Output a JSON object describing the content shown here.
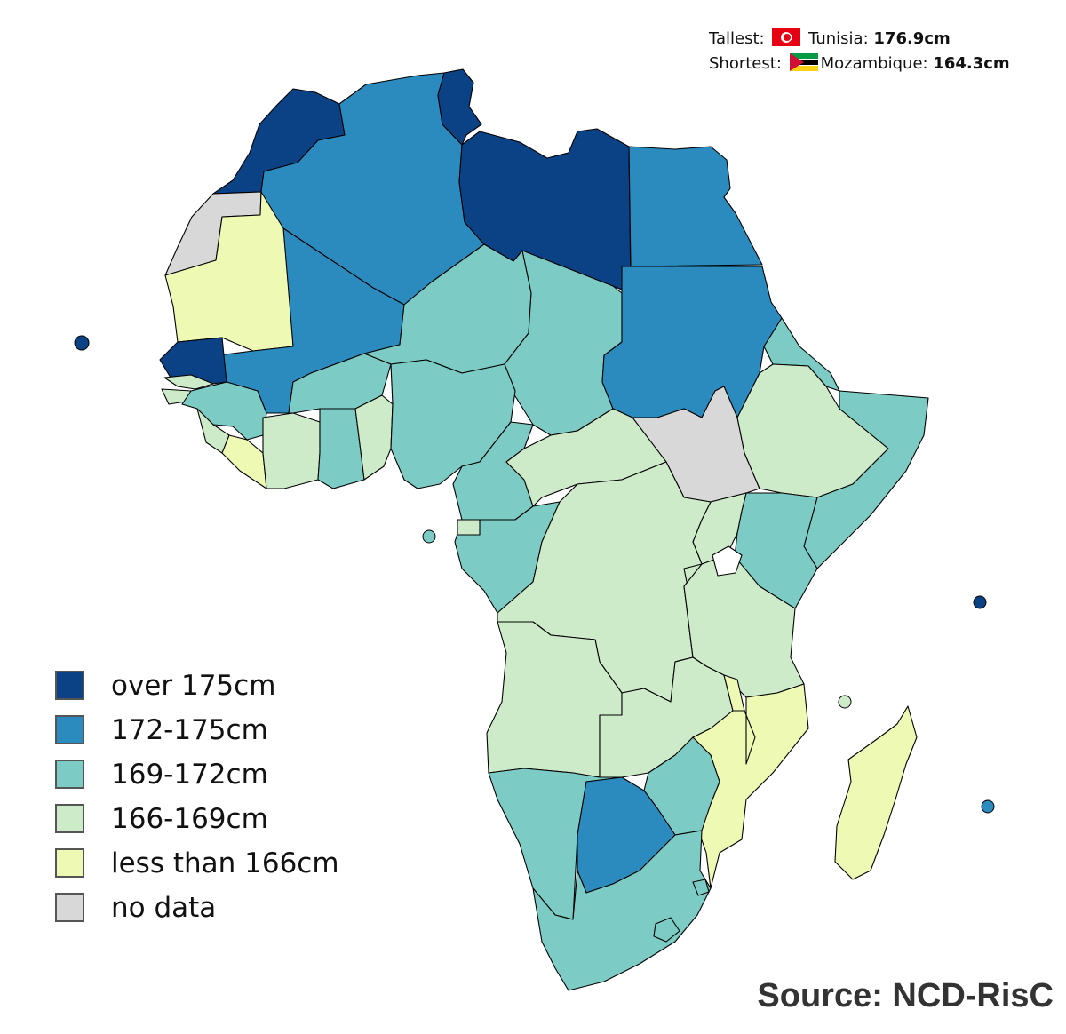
{
  "legend": {
    "items": [
      {
        "label": "over 175cm",
        "color": "#0b4285"
      },
      {
        "label": "172-175cm",
        "color": "#2c8bbe"
      },
      {
        "label": "169-172cm",
        "color": "#7ccbc4"
      },
      {
        "label": "166-169cm",
        "color": "#cdeac9"
      },
      {
        "label": "less than 166cm",
        "color": "#eef9b3"
      },
      {
        "label": "no data",
        "color": "#d8d8d8"
      }
    ]
  },
  "info": {
    "tallest_label": "Tallest:",
    "tallest_flag": "tunisia-flag",
    "tallest_country": "Tunisia:",
    "tallest_value": "176.9cm",
    "shortest_label": "Shortest:",
    "shortest_flag": "mozambique-flag",
    "shortest_country": "Mozambique:",
    "shortest_value": "164.3cm"
  },
  "source": "Source: NCD-RisC",
  "colors": {
    "over_175": "#0b4285",
    "172_175": "#2c8bbe",
    "169_172": "#7ccbc4",
    "166_169": "#cdeac9",
    "under_166": "#eef9b3",
    "no_data": "#d8d8d8"
  }
}
